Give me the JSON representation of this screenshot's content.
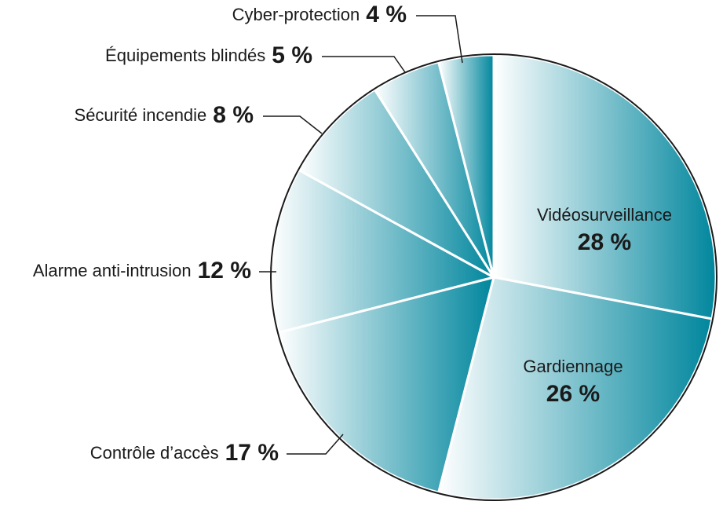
{
  "chart_data": {
    "type": "pie",
    "categories": [
      "Vidéosurveillance",
      "Gardiennage",
      "Contrôle d’accès",
      "Alarme anti-intrusion",
      "Sécurité incendie",
      "Équipements blindés",
      "Cyber-protection"
    ],
    "values": [
      28,
      26,
      17,
      12,
      8,
      5,
      4
    ],
    "value_labels": [
      "28 %",
      "26 %",
      "17 %",
      "12 %",
      "8 %",
      "5 %",
      "4 %"
    ],
    "color": "#00869d"
  }
}
